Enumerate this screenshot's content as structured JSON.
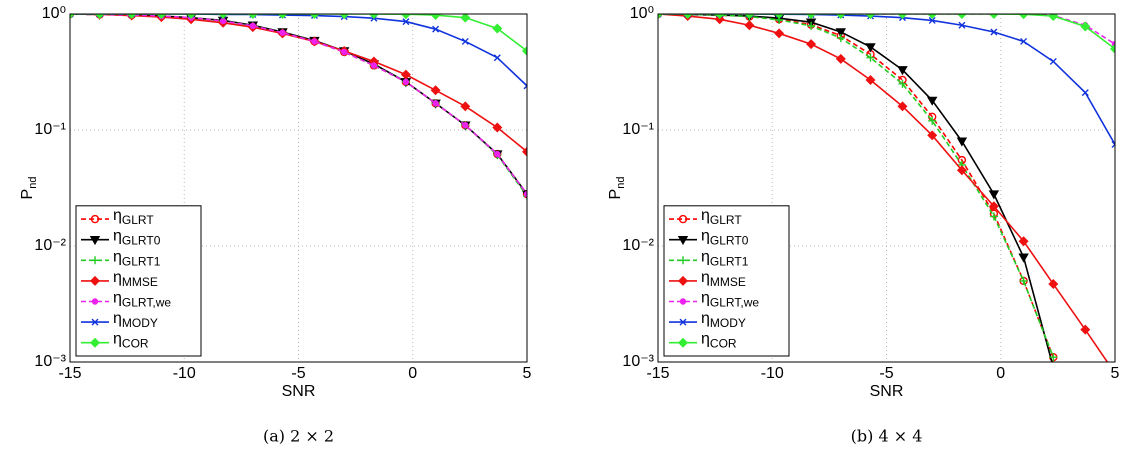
{
  "chart_data": [
    {
      "type": "line",
      "caption": "(a) 2 × 2",
      "xlabel": "SNR",
      "ylabel": "Pnd",
      "x": [
        -15,
        -13.7,
        -12.3,
        -11,
        -9.7,
        -8.3,
        -7,
        -5.7,
        -4.3,
        -3,
        -1.7,
        -0.3,
        1,
        2.3,
        3.7,
        5
      ],
      "xlim": [
        -15,
        5
      ],
      "xticks": [
        -15,
        -10,
        -5,
        0,
        5
      ],
      "ylim": [
        0.001,
        1
      ],
      "log_y": true,
      "yticks": [
        {
          "value": 1,
          "label": "10⁰"
        },
        {
          "value": 0.1,
          "label": "10⁻¹"
        },
        {
          "value": 0.01,
          "label": "10⁻²"
        },
        {
          "value": 0.001,
          "label": "10⁻³"
        }
      ],
      "grid": true,
      "legend": "lower left",
      "series": [
        {
          "name": "ηGLRT",
          "color": "#ff0000",
          "dash": true,
          "marker": "circle",
          "values": [
            1,
            0.99,
            0.98,
            0.96,
            0.93,
            0.87,
            0.79,
            0.69,
            0.58,
            0.47,
            0.36,
            0.26,
            0.17,
            0.11,
            0.062,
            0.028
          ]
        },
        {
          "name": "ηGLRT0",
          "color": "#000000",
          "dash": false,
          "marker": "triangle",
          "values": [
            1,
            0.99,
            0.98,
            0.96,
            0.93,
            0.88,
            0.8,
            0.7,
            0.59,
            0.48,
            0.37,
            0.26,
            0.17,
            0.11,
            0.062,
            0.028
          ]
        },
        {
          "name": "ηGLRT1",
          "color": "#22cc22",
          "dash": true,
          "marker": "plus",
          "values": [
            1,
            0.99,
            0.98,
            0.96,
            0.93,
            0.87,
            0.79,
            0.69,
            0.58,
            0.47,
            0.36,
            0.26,
            0.17,
            0.11,
            0.061,
            0.027
          ]
        },
        {
          "name": "ηMMSE",
          "color": "#ee1111",
          "dash": false,
          "marker": "diamond",
          "values": [
            1,
            0.99,
            0.97,
            0.94,
            0.9,
            0.84,
            0.77,
            0.68,
            0.58,
            0.48,
            0.39,
            0.3,
            0.22,
            0.16,
            0.105,
            0.065
          ]
        },
        {
          "name": "ηGLRT,we",
          "color": "#ee22ee",
          "dash": true,
          "marker": "dot",
          "values": [
            1,
            0.99,
            0.98,
            0.96,
            0.93,
            0.87,
            0.79,
            0.69,
            0.58,
            0.47,
            0.36,
            0.26,
            0.17,
            0.11,
            0.062,
            0.028
          ]
        },
        {
          "name": "ηMODY",
          "color": "#1133dd",
          "dash": false,
          "marker": "x",
          "values": [
            1,
            1,
            1,
            1,
            1,
            0.99,
            0.99,
            0.98,
            0.97,
            0.95,
            0.92,
            0.86,
            0.74,
            0.58,
            0.42,
            0.24
          ]
        },
        {
          "name": "ηCOR",
          "color": "#33ee33",
          "dash": false,
          "marker": "diamond",
          "values": [
            1,
            1,
            1,
            1,
            1,
            1,
            1,
            1,
            1,
            1,
            1,
            0.995,
            0.98,
            0.93,
            0.75,
            0.48
          ]
        }
      ]
    },
    {
      "type": "line",
      "caption": "(b) 4 × 4",
      "xlabel": "SNR",
      "ylabel": "Pnd",
      "x": [
        -15,
        -13.7,
        -12.3,
        -11,
        -9.7,
        -8.3,
        -7,
        -5.7,
        -4.3,
        -3,
        -1.7,
        -0.3,
        1,
        2.3,
        3.7,
        5
      ],
      "xlim": [
        -15,
        5
      ],
      "xticks": [
        -15,
        -10,
        -5,
        0,
        5
      ],
      "ylim": [
        0.001,
        1
      ],
      "log_y": true,
      "yticks": [
        {
          "value": 1,
          "label": "10⁰"
        },
        {
          "value": 0.1,
          "label": "10⁻¹"
        },
        {
          "value": 0.01,
          "label": "10⁻²"
        },
        {
          "value": 0.001,
          "label": "10⁻³"
        }
      ],
      "grid": true,
      "legend": "lower left",
      "series": [
        {
          "name": "ηGLRT",
          "color": "#ff0000",
          "dash": true,
          "marker": "circle",
          "values": [
            1,
            0.99,
            0.98,
            0.95,
            0.9,
            0.81,
            0.65,
            0.45,
            0.27,
            0.13,
            0.055,
            0.019,
            0.005,
            0.0011,
            null,
            null
          ]
        },
        {
          "name": "ηGLRT0",
          "color": "#000000",
          "dash": false,
          "marker": "triangle",
          "values": [
            1,
            0.99,
            0.98,
            0.96,
            0.92,
            0.85,
            0.7,
            0.52,
            0.33,
            0.18,
            0.08,
            0.028,
            0.008,
            0.0009,
            null,
            null
          ]
        },
        {
          "name": "ηGLRT1",
          "color": "#22cc22",
          "dash": true,
          "marker": "plus",
          "values": [
            1,
            0.99,
            0.98,
            0.95,
            0.89,
            0.79,
            0.62,
            0.42,
            0.25,
            0.12,
            0.05,
            0.018,
            0.005,
            0.0011,
            null,
            null
          ]
        },
        {
          "name": "ηMMSE",
          "color": "#ee1111",
          "dash": false,
          "marker": "diamond",
          "values": [
            1,
            0.96,
            0.9,
            0.8,
            0.68,
            0.55,
            0.41,
            0.27,
            0.16,
            0.09,
            0.045,
            0.022,
            0.011,
            0.0047,
            0.0019,
            0.0008
          ]
        },
        {
          "name": "ηGLRT,we",
          "color": "#ee22ee",
          "dash": true,
          "marker": "dot",
          "values": [
            1,
            1,
            1,
            1,
            1,
            1,
            1,
            1,
            1,
            1,
            1,
            1,
            1,
            0.97,
            0.8,
            0.55
          ]
        },
        {
          "name": "ηMODY",
          "color": "#1133dd",
          "dash": false,
          "marker": "x",
          "values": [
            1,
            1,
            1,
            1,
            0.995,
            0.99,
            0.98,
            0.96,
            0.93,
            0.88,
            0.8,
            0.7,
            0.58,
            0.39,
            0.21,
            0.075
          ]
        },
        {
          "name": "ηCOR",
          "color": "#33ee33",
          "dash": false,
          "marker": "diamond",
          "values": [
            1,
            1,
            1,
            1,
            1,
            1,
            1,
            1,
            1,
            1,
            1,
            1,
            0.995,
            0.96,
            0.78,
            0.5
          ]
        }
      ]
    }
  ]
}
